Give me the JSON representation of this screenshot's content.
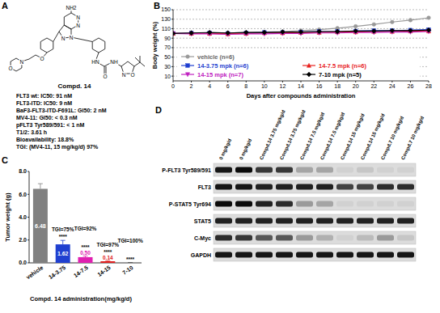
{
  "panel_a": {
    "panel": "A",
    "title": "Compd. 14",
    "atom_labels": [
      "NH2",
      "N",
      "N",
      "N",
      "N",
      "O",
      "N",
      "O",
      "HN",
      "O",
      "NH",
      "N",
      "O"
    ],
    "properties": [
      "FLT3 wt: IC50: 91 nM",
      "FLT3-ITD: IC50: 9 nM",
      "BaF3-FLT3-ITD-F691L: GI50: 2 nM",
      "MV4-11: GI50: < 0.3 nM",
      "pFLT3 Tyr589/591: < 1 nM",
      "T1/2: 3.61 h",
      "Bioavailability: 18.8%",
      "TGI: (MV4-11, 15 mg/kg/d) 97%"
    ]
  },
  "chart_data": [
    {
      "panel": "B",
      "type": "line",
      "x_label": "Days after compounds administration",
      "y_label": "Body weight (%)",
      "x": [
        0,
        2,
        4,
        6,
        8,
        10,
        12,
        14,
        16,
        18,
        20,
        22,
        24,
        26,
        28
      ],
      "series": [
        {
          "name": "vehicle (n=6)",
          "color": "#999999",
          "marker": "circle",
          "values": [
            100,
            100,
            101,
            101,
            102,
            103,
            104,
            106,
            108,
            111,
            115,
            119,
            124,
            128,
            133
          ]
        },
        {
          "name": "14-3.75 mpk (n=6)",
          "color": "#1f3fd0",
          "marker": "square",
          "values": [
            100,
            101,
            101,
            100,
            101,
            102,
            102,
            103,
            104,
            104,
            105,
            106,
            106,
            107,
            108
          ]
        },
        {
          "name": "14-7.5 mpk (n=6)",
          "color": "#e8231f",
          "marker": "triangle-up",
          "values": [
            100,
            100,
            100,
            99,
            100,
            101,
            101,
            102,
            102,
            103,
            103,
            104,
            104,
            105,
            105
          ]
        },
        {
          "name": "14-15 mpk (n=7)",
          "color": "#c020c0",
          "marker": "triangle-down",
          "values": [
            100,
            99,
            99,
            98,
            99,
            99,
            100,
            100,
            101,
            101,
            102,
            102,
            103,
            103,
            104
          ]
        },
        {
          "name": "7-10 mpk (n=5)",
          "color": "#000000",
          "marker": "diamond",
          "values": [
            100,
            101,
            102,
            101,
            102,
            102,
            103,
            103,
            104,
            104,
            105,
            105,
            106,
            106,
            107
          ]
        }
      ],
      "xlim": [
        0,
        28
      ],
      "xticks": [
        0,
        2,
        4,
        6,
        8,
        10,
        12,
        14,
        16,
        18,
        20,
        22,
        24,
        26,
        28
      ],
      "ylim": [
        0,
        150
      ],
      "yticks": [
        10,
        30,
        50,
        70,
        90,
        110,
        130,
        150
      ],
      "grid": true,
      "legend": "bottom left"
    },
    {
      "panel": "C",
      "type": "bar",
      "x_label": "Compd. 14 administration(mg/kg/d)",
      "y_label": "Tumor weight (g)",
      "categories": [
        "vehicle",
        "14-3.75",
        "14-7.5",
        "14-15",
        "7-10"
      ],
      "values": [
        6.48,
        1.62,
        0.5,
        0.14,
        0
      ],
      "value_labels": [
        "6.48",
        "1.62",
        "0.50",
        "0.14",
        null
      ],
      "errors": [
        0.45,
        0.35,
        0.1,
        0.05,
        0
      ],
      "colors": [
        "#808080",
        "#2040d0",
        "#e020b0",
        "#e02020",
        "#000000"
      ],
      "significance": [
        null,
        "****",
        "****",
        "****",
        "****"
      ],
      "annotations": [
        null,
        "TGI=75%",
        "TGI=92%",
        "TGI=97%",
        "TGI=100%"
      ],
      "ylim": [
        0,
        8
      ],
      "yticks": [
        {
          "value": 0,
          "label": "0.0"
        },
        {
          "value": 2,
          "label": "2.0"
        },
        {
          "value": 4,
          "label": "4.0"
        },
        {
          "value": 6,
          "label": "6.0"
        },
        {
          "value": 8,
          "label": "8.0"
        }
      ],
      "data_labels": true
    }
  ],
  "panel_d": {
    "panel": "D",
    "lanes": [
      "0 mg/kg/d",
      "0 mg/kg/d",
      "Compd.14 3.75 mg/kg/d",
      "Compd.14 3.75 mg/kg/d",
      "Compd.14 7.5 mg/kg/d",
      "Compd.14 7.5 mg/kg/d",
      "Compd.14 15 mg/kg/d",
      "Compd.14 15 mg/kg/d",
      "Compd.7 10 mg/kg/d",
      "Compd.7 10 mg/kg/d"
    ],
    "rows": [
      {
        "label": "P-FLT3 Tyr589/591",
        "intensity": [
          0.9,
          0.95,
          0.75,
          0.75,
          0.25,
          0.25,
          0.05,
          0.1,
          0.05,
          0.05
        ]
      },
      {
        "label": "FLT3",
        "intensity": [
          0.9,
          0.9,
          0.85,
          0.85,
          0.85,
          0.85,
          0.7,
          0.7,
          0.8,
          0.8
        ]
      },
      {
        "label": "P-STAT5 Tyr694",
        "intensity": [
          0.95,
          0.95,
          0.85,
          0.8,
          0.3,
          0.25,
          0.05,
          0.05,
          0.05,
          0.05
        ]
      },
      {
        "label": "STAT5",
        "intensity": [
          0.85,
          0.85,
          0.85,
          0.85,
          0.85,
          0.85,
          0.85,
          0.85,
          0.85,
          0.85
        ]
      },
      {
        "label": "C-Myc",
        "intensity": [
          0.8,
          0.75,
          0.6,
          0.6,
          0.3,
          0.2,
          0.05,
          0.15,
          0.3,
          0.1
        ]
      },
      {
        "label": "GAPDH",
        "intensity": [
          0.9,
          0.9,
          0.9,
          0.9,
          0.9,
          0.9,
          0.9,
          0.9,
          0.9,
          0.9
        ]
      }
    ]
  }
}
